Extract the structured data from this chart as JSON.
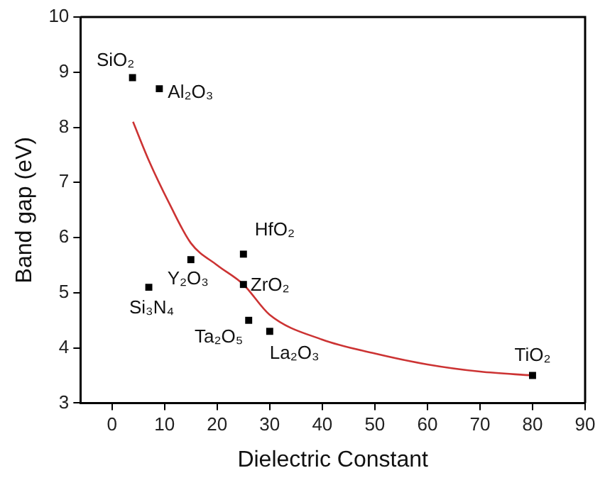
{
  "chart_data": {
    "type": "scatter",
    "xlabel": "Dielectric Constant",
    "ylabel": "Band gap (eV)",
    "xlim": [
      -6,
      90
    ],
    "xticks": [
      0,
      10,
      20,
      30,
      40,
      50,
      60,
      70,
      80,
      90
    ],
    "ylim": [
      3,
      10
    ],
    "yticks": [
      3,
      4,
      5,
      6,
      7,
      8,
      9,
      10
    ],
    "grid": false,
    "legend": false,
    "series": [
      {
        "color": "#000000",
        "marker": "square",
        "x": [
          3.9,
          9,
          7,
          15,
          25,
          25,
          26,
          30,
          80
        ],
        "values": [
          8.9,
          8.7,
          5.1,
          5.6,
          5.7,
          5.15,
          4.5,
          4.3,
          3.5
        ]
      },
      {
        "type": "line",
        "color": "#cc3333",
        "marker": "none",
        "x": [
          4,
          7,
          11,
          15,
          20,
          25,
          30,
          40,
          50,
          60,
          70,
          80
        ],
        "values": [
          8.1,
          7.4,
          6.6,
          5.9,
          5.5,
          5.15,
          4.6,
          4.15,
          3.9,
          3.7,
          3.57,
          3.5
        ]
      }
    ],
    "annotations": [
      {
        "text": "SiO₂",
        "x": 3.9,
        "y": 8.9
      },
      {
        "text": "Al₂O₃",
        "x": 9,
        "y": 8.7
      },
      {
        "text": "Si₃N₄",
        "x": 7,
        "y": 5.1
      },
      {
        "text": "Y₂O₃",
        "x": 15,
        "y": 5.6
      },
      {
        "text": "HfO₂",
        "x": 25,
        "y": 5.7
      },
      {
        "text": "ZrO₂",
        "x": 25,
        "y": 5.15
      },
      {
        "text": "Ta₂O₅",
        "x": 26,
        "y": 4.5
      },
      {
        "text": "La₂O₃",
        "x": 30,
        "y": 4.3
      },
      {
        "text": "TiO₂",
        "x": 80,
        "y": 3.5
      }
    ]
  }
}
